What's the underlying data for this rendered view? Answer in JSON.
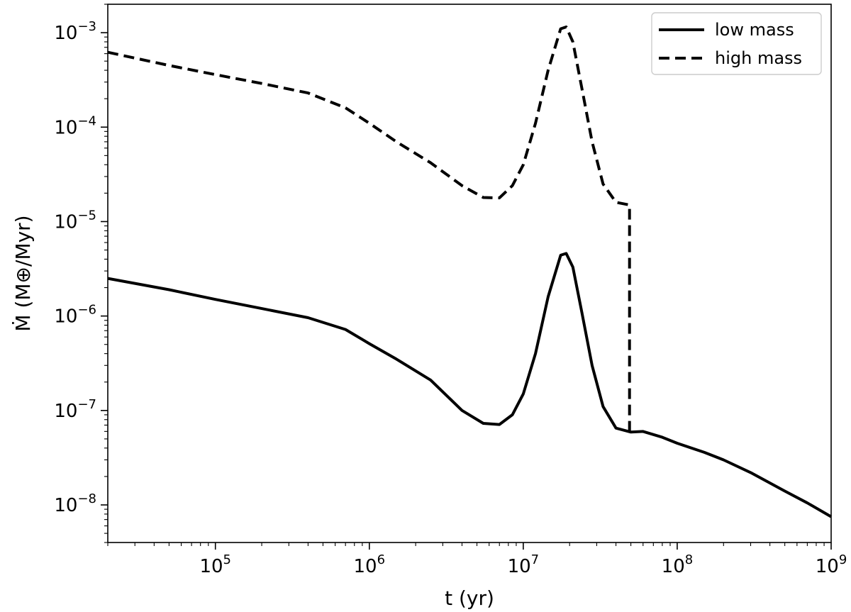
{
  "chart_data": {
    "type": "line",
    "title": "",
    "xlabel": "t (yr)",
    "ylabel": "Ṁ (M⊕/Myr)",
    "xscale": "log",
    "yscale": "log",
    "xlim": [
      20000,
      1000000000
    ],
    "ylim": [
      4e-09,
      0.002
    ],
    "grid": false,
    "legend_position": "top-right",
    "x_ticks": [
      {
        "value": 100000,
        "base": "10",
        "exp": "5"
      },
      {
        "value": 1000000,
        "base": "10",
        "exp": "6"
      },
      {
        "value": 10000000,
        "base": "10",
        "exp": "7"
      },
      {
        "value": 100000000,
        "base": "10",
        "exp": "8"
      },
      {
        "value": 1000000000,
        "base": "10",
        "exp": "9"
      }
    ],
    "y_ticks": [
      {
        "value": 1e-08,
        "base": "10",
        "exp": "−8"
      },
      {
        "value": 1e-07,
        "base": "10",
        "exp": "−7"
      },
      {
        "value": 1e-06,
        "base": "10",
        "exp": "−6"
      },
      {
        "value": 1e-05,
        "base": "10",
        "exp": "−5"
      },
      {
        "value": 0.0001,
        "base": "10",
        "exp": "−4"
      },
      {
        "value": 0.001,
        "base": "10",
        "exp": "−3"
      }
    ],
    "series": [
      {
        "name": "low mass",
        "color": "#000000",
        "style": "solid",
        "points": [
          [
            20000,
            2.5e-06
          ],
          [
            50000,
            1.9e-06
          ],
          [
            100000,
            1.5e-06
          ],
          [
            200000,
            1.2e-06
          ],
          [
            400000,
            9.6e-07
          ],
          [
            700000,
            7.2e-07
          ],
          [
            1000000,
            5.1e-07
          ],
          [
            1500000,
            3.5e-07
          ],
          [
            2500000,
            2.1e-07
          ],
          [
            4000000,
            1e-07
          ],
          [
            5500000,
            7.3e-08
          ],
          [
            7000000,
            7.1e-08
          ],
          [
            8500000,
            9e-08
          ],
          [
            10000000,
            1.5e-07
          ],
          [
            12000000,
            4e-07
          ],
          [
            14500000,
            1.6e-06
          ],
          [
            17500000,
            4.4e-06
          ],
          [
            19000000,
            4.6e-06
          ],
          [
            21000000,
            3.3e-06
          ],
          [
            24000000,
            1.1e-06
          ],
          [
            28000000,
            3e-07
          ],
          [
            33000000,
            1.1e-07
          ],
          [
            40000000,
            6.5e-08
          ],
          [
            50000000,
            5.9e-08
          ],
          [
            60000000,
            6e-08
          ],
          [
            80000000,
            5.2e-08
          ],
          [
            100000000,
            4.5e-08
          ],
          [
            150000000,
            3.6e-08
          ],
          [
            200000000,
            3e-08
          ],
          [
            300000000,
            2.2e-08
          ],
          [
            500000000,
            1.4e-08
          ],
          [
            700000000,
            1.05e-08
          ],
          [
            1000000000,
            7.5e-09
          ]
        ]
      },
      {
        "name": "high mass",
        "color": "#000000",
        "style": "dashed",
        "points": [
          [
            20000,
            0.00062
          ],
          [
            50000,
            0.00045
          ],
          [
            100000,
            0.00036
          ],
          [
            200000,
            0.00029
          ],
          [
            400000,
            0.00023
          ],
          [
            700000,
            0.00016
          ],
          [
            1000000,
            0.00011
          ],
          [
            1500000,
            7e-05
          ],
          [
            2500000,
            4.2e-05
          ],
          [
            4000000,
            2.4e-05
          ],
          [
            5500000,
            1.8e-05
          ],
          [
            7000000,
            1.78e-05
          ],
          [
            8500000,
            2.4e-05
          ],
          [
            10000000,
            4e-05
          ],
          [
            12000000,
            0.00011
          ],
          [
            14500000,
            0.0004
          ],
          [
            17500000,
            0.0011
          ],
          [
            19000000,
            0.00115
          ],
          [
            21000000,
            0.0008
          ],
          [
            24000000,
            0.00026
          ],
          [
            28000000,
            7e-05
          ],
          [
            33000000,
            2.5e-05
          ],
          [
            40000000,
            1.6e-05
          ],
          [
            49000000,
            1.5e-05
          ],
          [
            49000000,
            6e-08
          ]
        ]
      }
    ]
  }
}
